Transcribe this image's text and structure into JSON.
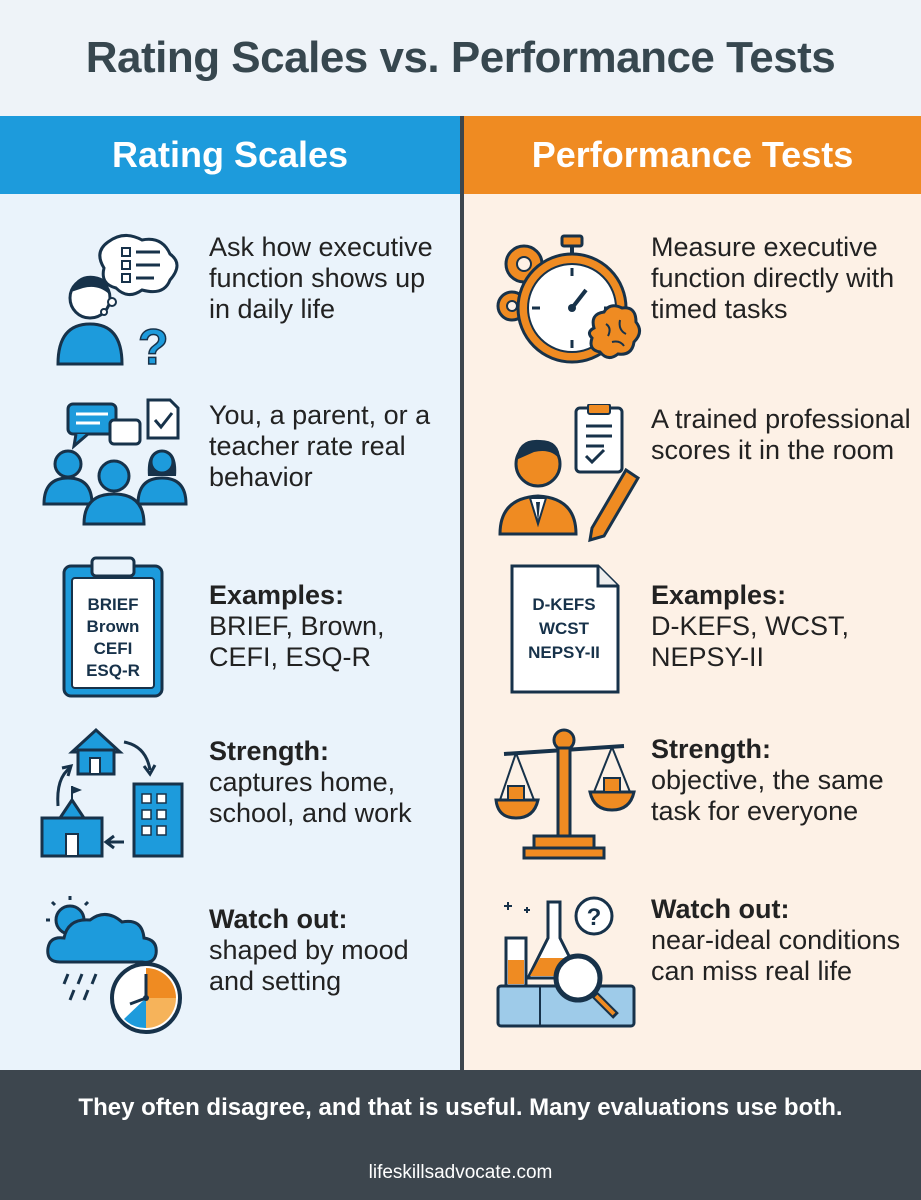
{
  "title": "Rating Scales vs. Performance Tests",
  "left": {
    "heading": "Rating Scales",
    "rows": [
      {
        "icon": "person-thinking-checklist-icon",
        "text": "Ask how executive function shows up in daily life"
      },
      {
        "icon": "parent-teacher-group-icon",
        "text": "You, a parent, or a teacher rate real behavior"
      },
      {
        "icon": "clipboard-icon",
        "label": "Examples:",
        "text": "BRIEF, Brown, CEFI, ESQ-R",
        "clip_lines": [
          "BRIEF",
          "Brown",
          "CEFI",
          "ESQ-R"
        ]
      },
      {
        "icon": "home-school-work-cycle-icon",
        "label": "Strength:",
        "text": "captures home, school, and work"
      },
      {
        "icon": "weather-clock-icon",
        "label": "Watch out:",
        "text": "shaped by mood and setting"
      }
    ]
  },
  "right": {
    "heading": "Performance Tests",
    "rows": [
      {
        "icon": "stopwatch-brain-icon",
        "text": "Measure executive function directly with timed tasks"
      },
      {
        "icon": "professional-clipboard-icon",
        "text": "A trained professional scores it in the room"
      },
      {
        "icon": "document-icon",
        "label": "Examples:",
        "text": "D-KEFS, WCST, NEPSY-II",
        "doc_lines": [
          "D-KEFS",
          "WCST",
          "NEPSY-II"
        ]
      },
      {
        "icon": "balance-scale-icon",
        "label": "Strength:",
        "text": "objective, the same task for everyone"
      },
      {
        "icon": "lab-magnifier-icon",
        "label": "Watch out:",
        "text": "near-ideal conditions can miss real life"
      }
    ]
  },
  "footer": {
    "message": "They often disagree, and that is useful. Many evaluations use both.",
    "url": "lifeskillsadvocate.com"
  },
  "colors": {
    "blue": "#1d9bdc",
    "orange": "#ef8b22",
    "dark": "#3d464e",
    "title": "#37474f"
  }
}
